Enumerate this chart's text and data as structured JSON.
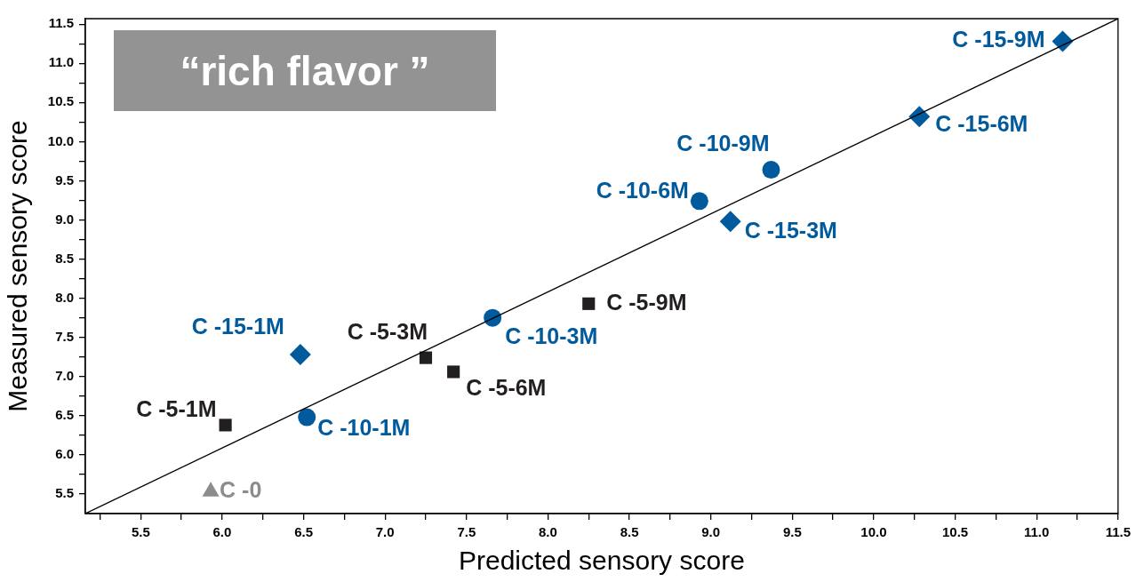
{
  "chart_data": {
    "type": "scatter",
    "title": "“rich flavor ”",
    "xlabel": "Predicted sensory score",
    "ylabel": "Measured sensory score",
    "xlim": [
      5.16,
      11.5
    ],
    "ylim": [
      5.25,
      11.57
    ],
    "grid": false,
    "legend": false,
    "xticks": [
      {
        "value": 5.25,
        "label": null
      },
      5.5,
      {
        "value": 5.75,
        "label": null
      },
      {
        "value": 6,
        "label": "6.0"
      },
      {
        "value": 6.25,
        "label": null
      },
      6.5,
      {
        "value": 6.75,
        "label": null
      },
      {
        "value": 7,
        "label": "7.0"
      },
      {
        "value": 7.25,
        "label": null
      },
      7.5,
      {
        "value": 7.75,
        "label": null
      },
      {
        "value": 8,
        "label": "8.0"
      },
      {
        "value": 8.25,
        "label": null
      },
      8.5,
      {
        "value": 8.75,
        "label": null
      },
      {
        "value": 9,
        "label": "9.0"
      },
      {
        "value": 9.25,
        "label": null
      },
      9.5,
      {
        "value": 9.75,
        "label": null
      },
      {
        "value": 10,
        "label": "10.0"
      },
      {
        "value": 10.25,
        "label": null
      },
      10.5,
      {
        "value": 10.75,
        "label": null
      },
      {
        "value": 11,
        "label": "11.0"
      },
      {
        "value": 11.25,
        "label": null
      },
      11.5
    ],
    "yticks": [
      5.5,
      {
        "value": 5.75,
        "label": null
      },
      {
        "value": 6,
        "label": "6.0"
      },
      {
        "value": 6.25,
        "label": null
      },
      6.5,
      {
        "value": 6.75,
        "label": null
      },
      {
        "value": 7,
        "label": "7.0"
      },
      {
        "value": 7.25,
        "label": null
      },
      7.5,
      {
        "value": 7.75,
        "label": null
      },
      {
        "value": 8,
        "label": "8.0"
      },
      {
        "value": 8.25,
        "label": null
      },
      8.5,
      {
        "value": 8.75,
        "label": null
      },
      {
        "value": 9,
        "label": "9.0"
      },
      {
        "value": 9.25,
        "label": null
      },
      9.5,
      {
        "value": 9.75,
        "label": null
      },
      {
        "value": 10,
        "label": "10.0"
      },
      {
        "value": 10.25,
        "label": null
      },
      10.5,
      {
        "value": 10.75,
        "label": null
      },
      {
        "value": 11,
        "label": "11.0"
      },
      {
        "value": 11.25,
        "label": null
      },
      11.5
    ],
    "series": [
      {
        "type": "line",
        "color": "#000000",
        "marker": "none",
        "x": [
          5.16,
          11.5
        ],
        "values": [
          5.25,
          11.57
        ]
      },
      {
        "color": "#8c8c8c",
        "marker": "triangle",
        "x": [
          5.93
        ],
        "values": [
          5.53
        ]
      },
      {
        "color": "#231f20",
        "marker": "square",
        "x": [
          6.02,
          7.25,
          7.42,
          8.25
        ],
        "values": [
          6.38,
          7.24,
          7.06,
          7.93
        ]
      },
      {
        "color": "#005a9c",
        "marker": "circle",
        "x": [
          6.52,
          7.66,
          8.93,
          9.37
        ],
        "values": [
          6.48,
          7.75,
          9.24,
          9.64
        ]
      },
      {
        "color": "#005a9c",
        "marker": "diamond",
        "x": [
          6.48,
          9.12,
          10.28,
          11.16
        ],
        "values": [
          7.28,
          8.98,
          10.32,
          11.28
        ]
      }
    ],
    "annotations": [
      {
        "text": "C -0",
        "x": 5.93,
        "y": 5.53
      },
      {
        "text": "C -5-1M",
        "x": 6.02,
        "y": 6.38
      },
      {
        "text": "C -5-3M",
        "x": 7.25,
        "y": 7.24
      },
      {
        "text": "C -5-6M",
        "x": 7.42,
        "y": 7.06
      },
      {
        "text": "C -5-9M",
        "x": 8.25,
        "y": 7.93
      },
      {
        "text": "C -10-1M",
        "x": 6.52,
        "y": 6.48
      },
      {
        "text": "C -10-3M",
        "x": 7.66,
        "y": 7.75
      },
      {
        "text": "C -10-6M",
        "x": 8.93,
        "y": 9.24
      },
      {
        "text": "C -10-9M",
        "x": 9.37,
        "y": 9.64
      },
      {
        "text": "C -15-1M",
        "x": 6.48,
        "y": 7.28
      },
      {
        "text": "C -15-3M",
        "x": 9.12,
        "y": 8.98
      },
      {
        "text": "C -15-6M",
        "x": 10.28,
        "y": 10.32
      },
      {
        "text": "C -15-9M",
        "x": 11.16,
        "y": 11.28
      }
    ]
  }
}
